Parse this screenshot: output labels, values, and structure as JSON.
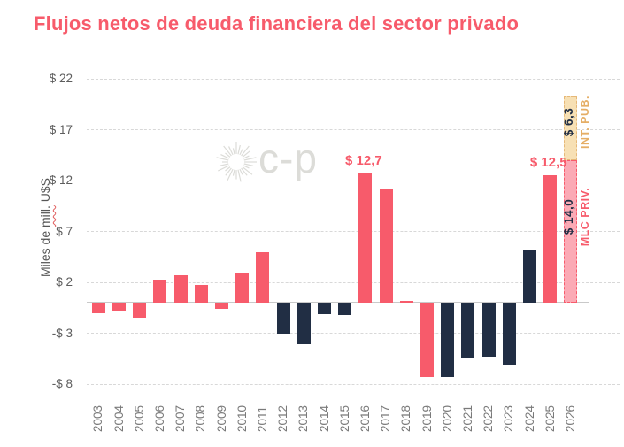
{
  "watermark": {
    "text": "c-p"
  },
  "colors": {
    "pink": "#f75b6b",
    "navy": "#212e44",
    "tan_fill": "#f7e0b4",
    "tan_border": "#e6b878",
    "tan_text": "#e5ae66",
    "pink_light_fill": "#fbaab5",
    "grid": "#d8d8d8",
    "zero": "#c9c9c9",
    "axis_text": "#5d5d5d",
    "xlabel_text": "#7a7a7a",
    "ylabel_text": "#565656",
    "wm": "#dcdcd8"
  },
  "chart_data": {
    "type": "bar",
    "title": "Flujos netos de deuda financiera del sector privado",
    "ylabel": "Miles de mill. U$S",
    "ylabel_parts": {
      "prefix": "Miles de ",
      "underlined": "mill.",
      "suffix": " U$S"
    },
    "xlabel": "",
    "ylim": [
      -8,
      22
    ],
    "grid": "dashed horizontal",
    "legend_position": "none",
    "yticks": [
      {
        "label": "$ 22",
        "value": 22
      },
      {
        "label": "$ 17",
        "value": 17
      },
      {
        "label": "$ 12",
        "value": 12
      },
      {
        "label": "$ 7",
        "value": 7
      },
      {
        "label": "$ 2",
        "value": 2
      },
      {
        "label": "-$ 3",
        "value": -3
      },
      {
        "label": "-$ 8",
        "value": -8
      }
    ],
    "bars": [
      {
        "year": "2003",
        "value": -1.0,
        "color": "pink"
      },
      {
        "year": "2004",
        "value": -0.8,
        "color": "pink"
      },
      {
        "year": "2005",
        "value": -1.5,
        "color": "pink"
      },
      {
        "year": "2006",
        "value": 2.3,
        "color": "pink"
      },
      {
        "year": "2007",
        "value": 2.7,
        "color": "pink"
      },
      {
        "year": "2008",
        "value": 1.7,
        "color": "pink"
      },
      {
        "year": "2009",
        "value": -0.6,
        "color": "pink"
      },
      {
        "year": "2010",
        "value": 3.0,
        "color": "pink"
      },
      {
        "year": "2011",
        "value": 5.0,
        "color": "pink"
      },
      {
        "year": "2012",
        "value": -3.0,
        "color": "navy"
      },
      {
        "year": "2013",
        "value": -4.1,
        "color": "navy"
      },
      {
        "year": "2014",
        "value": -1.1,
        "color": "navy"
      },
      {
        "year": "2015",
        "value": -1.2,
        "color": "navy"
      },
      {
        "year": "2016",
        "value": 12.7,
        "color": "pink"
      },
      {
        "year": "2017",
        "value": 11.2,
        "color": "pink"
      },
      {
        "year": "2018",
        "value": 0.2,
        "color": "pink"
      },
      {
        "year": "2019",
        "value": -7.3,
        "color": "pink"
      },
      {
        "year": "2020",
        "value": -7.3,
        "color": "navy"
      },
      {
        "year": "2021",
        "value": -5.5,
        "color": "navy"
      },
      {
        "year": "2022",
        "value": -5.3,
        "color": "navy"
      },
      {
        "year": "2023",
        "value": -6.1,
        "color": "navy"
      },
      {
        "year": "2024",
        "value": 5.1,
        "color": "navy"
      },
      {
        "year": "2025",
        "value": 12.5,
        "color": "pink"
      },
      {
        "year": "2026",
        "segments": [
          {
            "id": "mlc-priv",
            "value": 14.0,
            "label": "$ 14,0",
            "name": "MLC PRIV.",
            "style": "pink-dashed"
          },
          {
            "id": "int-pub",
            "value": 6.3,
            "label": "$ 6,3",
            "name": "INT. PUB.",
            "style": "tan-dashed"
          }
        ]
      }
    ],
    "annotations": [
      {
        "year": "2016",
        "label": "$ 12,7"
      },
      {
        "year": "2025",
        "label": "$ 12,5"
      }
    ]
  }
}
